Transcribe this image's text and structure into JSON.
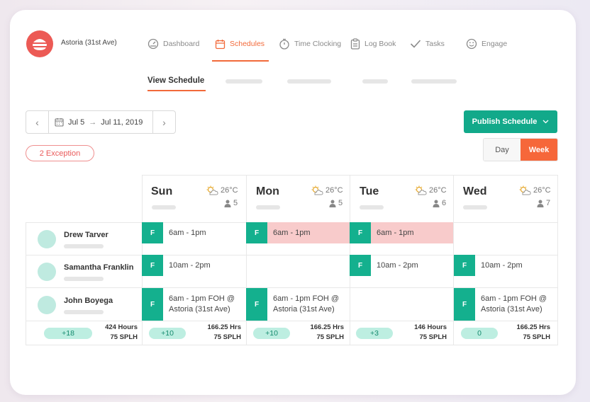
{
  "store": {
    "name": "Astoria (31st Ave)"
  },
  "nav": {
    "dashboard": "Dashboard",
    "schedules": "Schedules",
    "time_clocking": "Time Clocking",
    "log_book": "Log Book",
    "tasks": "Tasks",
    "engage": "Engage"
  },
  "subnav": {
    "view_schedule": "View Schedule"
  },
  "date_range": {
    "start": "Jul 5",
    "arrow": "→",
    "end": "Jul 11, 2019"
  },
  "actions": {
    "publish": "Publish Schedule",
    "exceptions": "2 Exception",
    "view_day": "Day",
    "view_week": "Week"
  },
  "days": [
    {
      "name": "Sun",
      "temp": "26°C",
      "people": "5"
    },
    {
      "name": "Mon",
      "temp": "26°C",
      "people": "5"
    },
    {
      "name": "Tue",
      "temp": "26°C",
      "people": "6"
    },
    {
      "name": "Wed",
      "temp": "26°C",
      "people": "7"
    }
  ],
  "employees": [
    {
      "name": "Drew Tarver"
    },
    {
      "name": "Samantha Franklin"
    },
    {
      "name": "John Boyega"
    }
  ],
  "shifts": {
    "r0d0": {
      "badge": "F",
      "time": "6am - 1pm"
    },
    "r0d1": {
      "badge": "F",
      "time": "6am - 1pm"
    },
    "r0d2": {
      "badge": "F",
      "time": "6am - 1pm"
    },
    "r1d0": {
      "badge": "F",
      "time": "10am - 2pm"
    },
    "r1d2": {
      "badge": "F",
      "time": "10am - 2pm"
    },
    "r1d3": {
      "badge": "F",
      "time": "10am - 2pm"
    },
    "r2d0": {
      "badge": "F",
      "line1": "6am - 1pm FOH @",
      "line2": "Astoria (31st Ave)"
    },
    "r2d1": {
      "badge": "F",
      "line1": "6am - 1pm FOH @",
      "line2": "Astoria (31st Ave)"
    },
    "r2d3": {
      "badge": "F",
      "line1": "6am - 1pm FOH @",
      "line2": "Astoria (31st Ave)"
    }
  },
  "totals": [
    {
      "delta": "+18",
      "hours": "424 Hours",
      "splh": "75 SPLH"
    },
    {
      "delta": "+10",
      "hours": "166.25 Hrs",
      "splh": "75 SPLH"
    },
    {
      "delta": "+10",
      "hours": "166.25 Hrs",
      "splh": "75 SPLH"
    },
    {
      "delta": "+3",
      "hours": "146 Hours",
      "splh": "75 SPLH"
    },
    {
      "delta": "0",
      "hours": "166.25 Hrs",
      "splh": "75 SPLH"
    }
  ],
  "colors": {
    "accent": "#f26a3a",
    "primary": "#12a98a",
    "exception": "#f8cbcb"
  }
}
